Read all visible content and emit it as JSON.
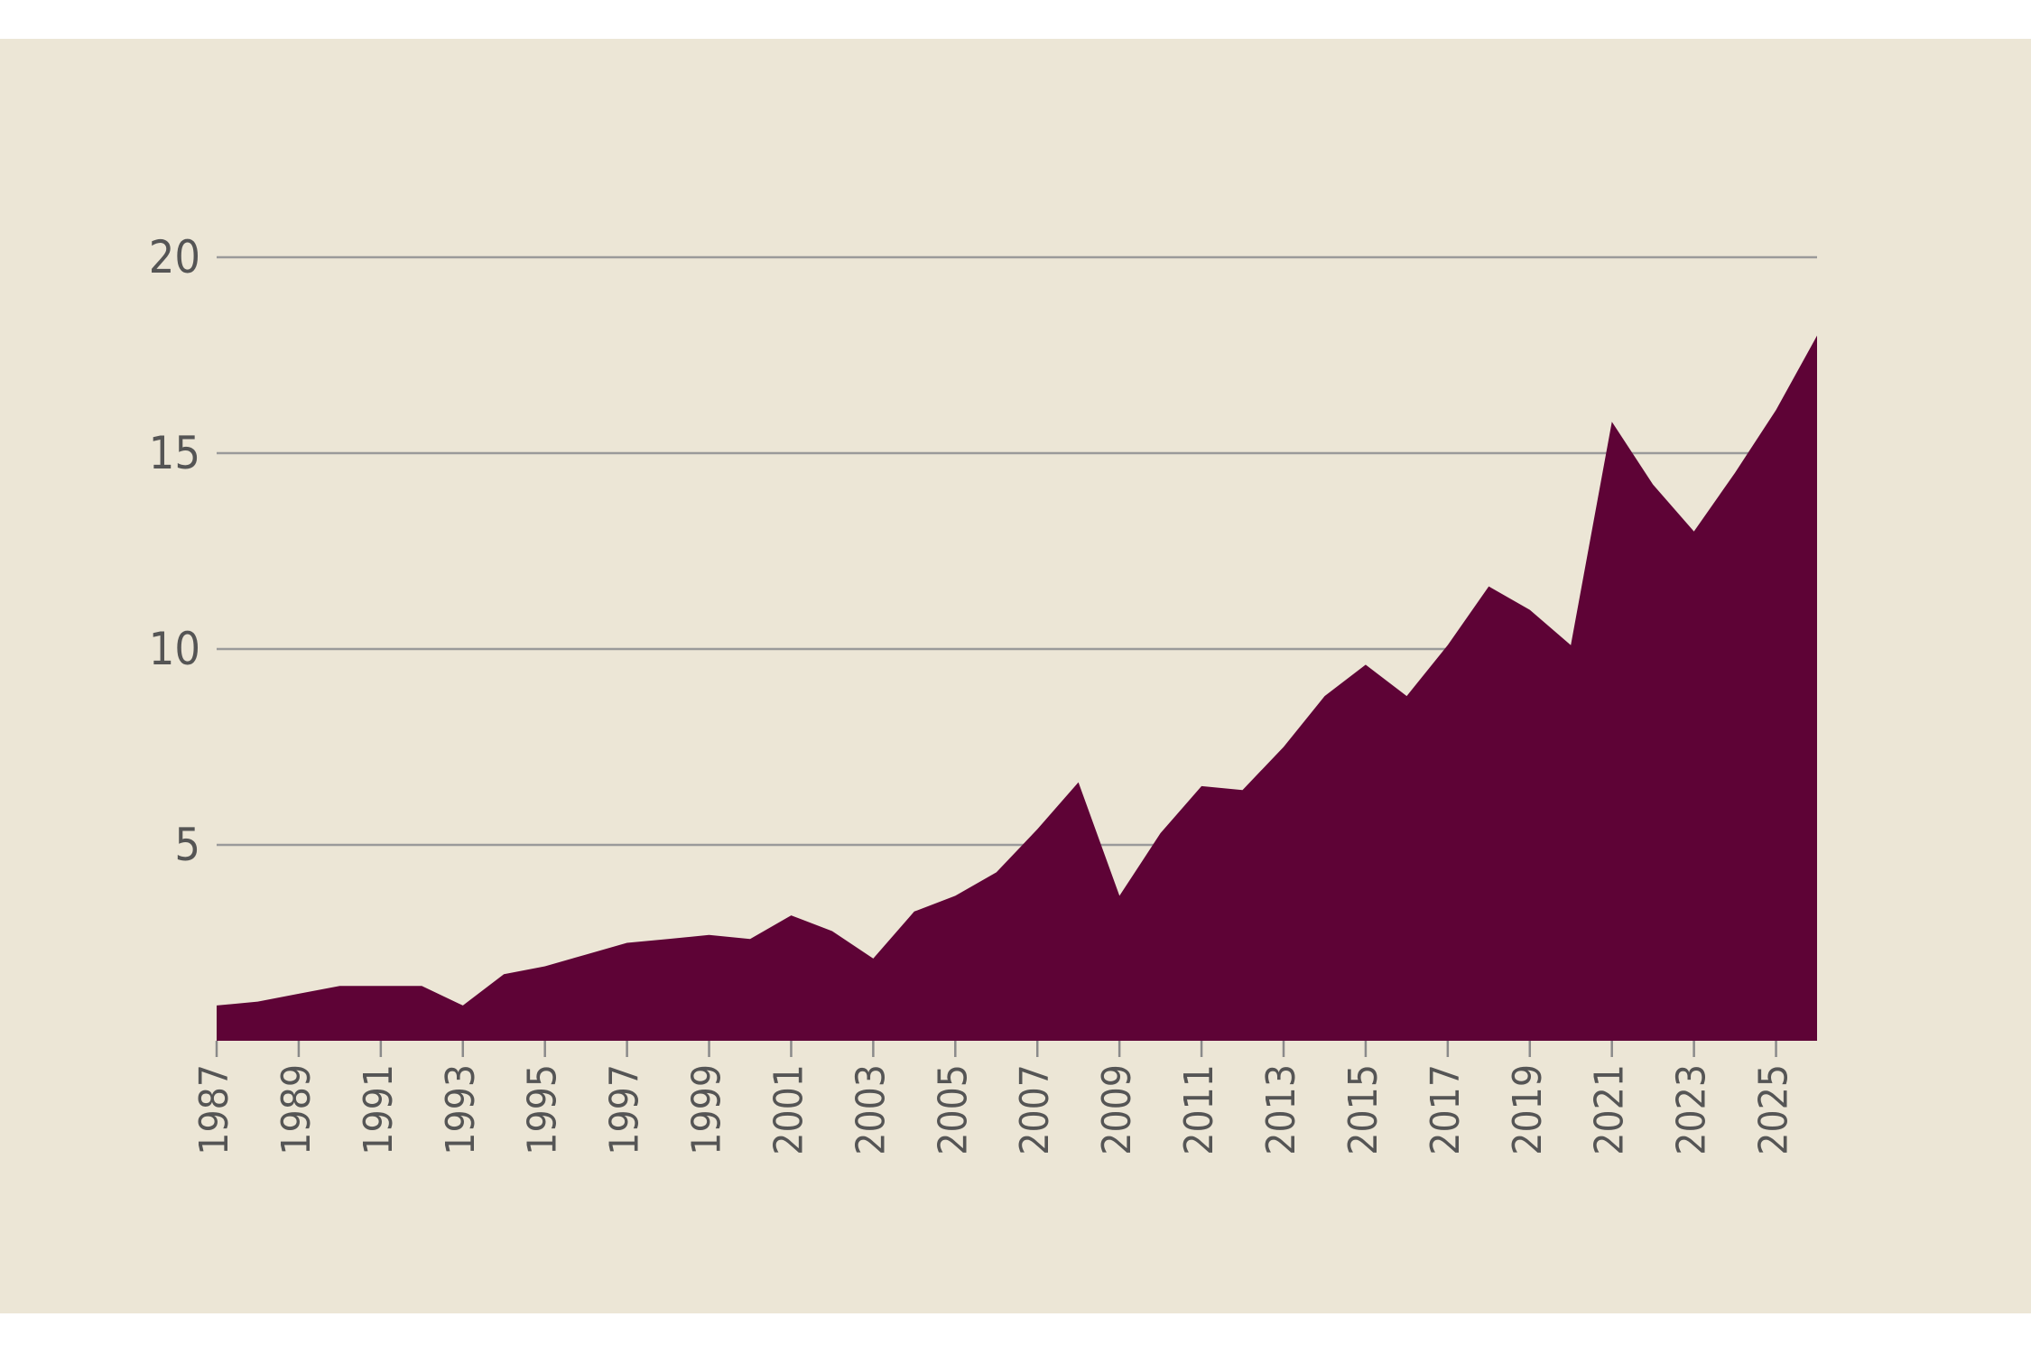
{
  "chart_data": {
    "type": "area",
    "title": "",
    "xlabel": "",
    "ylabel": "",
    "x": [
      1987,
      1988,
      1989,
      1990,
      1991,
      1992,
      1993,
      1994,
      1995,
      1996,
      1997,
      1998,
      1999,
      2000,
      2001,
      2002,
      2003,
      2004,
      2005,
      2006,
      2007,
      2008,
      2009,
      2010,
      2011,
      2012,
      2013,
      2014,
      2015,
      2016,
      2017,
      2018,
      2019,
      2020,
      2021,
      2022,
      2023,
      2024,
      2025,
      2026
    ],
    "series": [
      {
        "values": [
          0.9,
          1.0,
          1.2,
          1.4,
          1.4,
          1.4,
          0.9,
          1.7,
          1.9,
          2.2,
          2.5,
          2.6,
          2.7,
          2.6,
          3.2,
          2.8,
          2.1,
          3.3,
          3.7,
          4.3,
          5.4,
          6.6,
          3.7,
          5.3,
          6.5,
          6.4,
          7.5,
          8.8,
          9.6,
          8.8,
          10.1,
          11.6,
          11.0,
          10.1,
          15.8,
          14.2,
          13.0,
          14.5,
          16.1,
          18.0
        ]
      }
    ],
    "xticks": [
      "1987",
      "1989",
      "1991",
      "1993",
      "1995",
      "1997",
      "1999",
      "2001",
      "2003",
      "2005",
      "2007",
      "2009",
      "2011",
      "2013",
      "2015",
      "2017",
      "2019",
      "2021",
      "2023",
      "2025"
    ],
    "yticks": [
      "5",
      "10",
      "15",
      "20"
    ],
    "xlim": [
      1987,
      2026
    ],
    "ylim": [
      0,
      20
    ],
    "grid": true,
    "colors": {
      "fill": "#5e0336",
      "background": "#ece6d6",
      "grid": "#9a9a9a",
      "text": "#555555"
    }
  }
}
